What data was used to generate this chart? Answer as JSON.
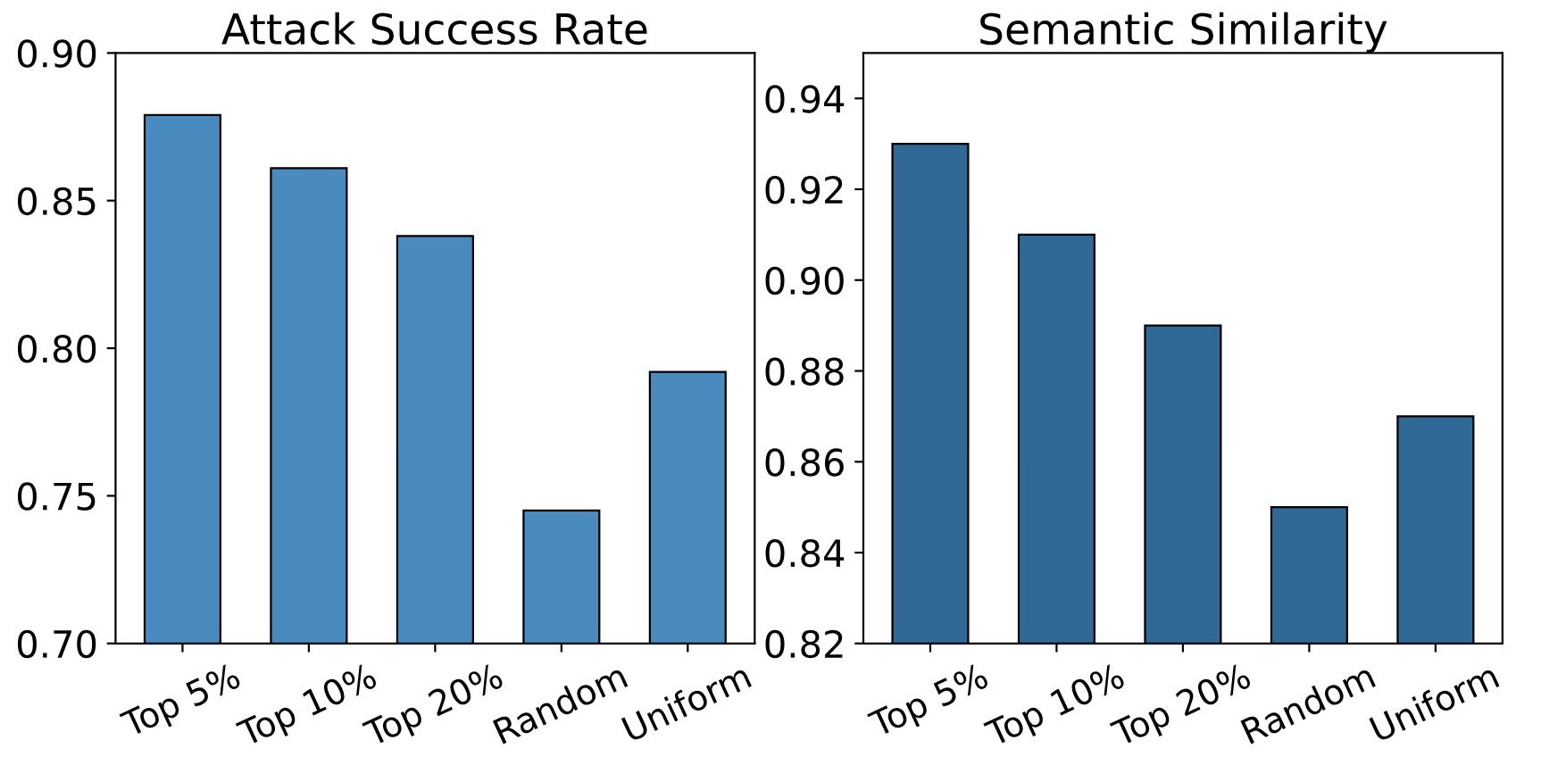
{
  "chart_data": [
    {
      "type": "bar",
      "title": "Attack Success Rate",
      "categories": [
        "Top 5%",
        "Top 10%",
        "Top 20%",
        "Random",
        "Uniform"
      ],
      "values": [
        0.879,
        0.861,
        0.838,
        0.745,
        0.792
      ],
      "color": "#4a8bbf",
      "ylim": [
        0.7,
        0.9
      ],
      "yticks": [
        {
          "value": 0.7,
          "label": "0.70"
        },
        {
          "value": 0.75,
          "label": "0.75"
        },
        {
          "value": 0.8,
          "label": "0.80"
        },
        {
          "value": 0.85,
          "label": "0.85"
        },
        {
          "value": 0.9,
          "label": "0.90"
        }
      ],
      "grid": false
    },
    {
      "type": "bar",
      "title": "Semantic Similarity",
      "categories": [
        "Top 5%",
        "Top 10%",
        "Top 20%",
        "Random",
        "Uniform"
      ],
      "values": [
        0.93,
        0.91,
        0.89,
        0.85,
        0.87
      ],
      "color": "#306896",
      "ylim": [
        0.82,
        0.95
      ],
      "yticks": [
        {
          "value": 0.82,
          "label": "0.82"
        },
        {
          "value": 0.84,
          "label": "0.84"
        },
        {
          "value": 0.86,
          "label": "0.86"
        },
        {
          "value": 0.88,
          "label": "0.88"
        },
        {
          "value": 0.9,
          "label": "0.90"
        },
        {
          "value": 0.92,
          "label": "0.92"
        },
        {
          "value": 0.94,
          "label": "0.94"
        }
      ],
      "grid": false
    }
  ]
}
